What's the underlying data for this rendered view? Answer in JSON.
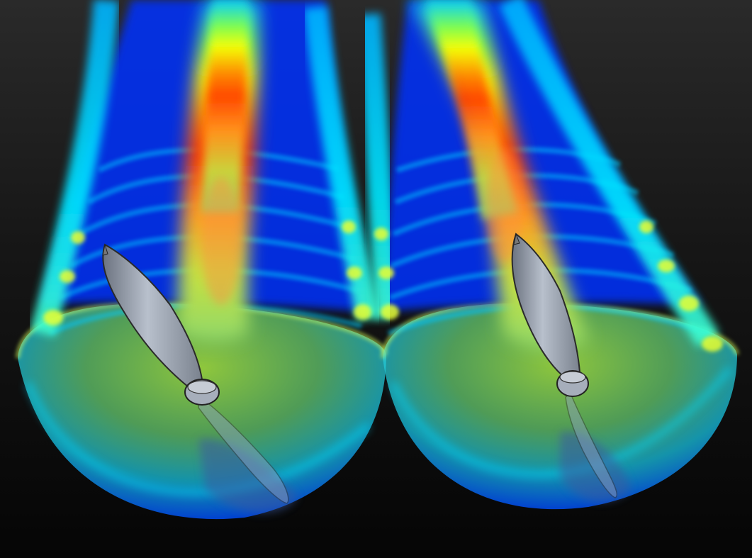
{
  "scene": {
    "colormap": [
      "#0000c8",
      "#0044ff",
      "#00c8ff",
      "#00ffd0",
      "#9cff3c",
      "#ffff00",
      "#ff8800",
      "#ff2a00"
    ],
    "background_top": "#2b2b2b",
    "background_bottom": "#030303",
    "propeller_color": "#9aa3b0",
    "propeller_count": 2,
    "wake_count": 2
  }
}
